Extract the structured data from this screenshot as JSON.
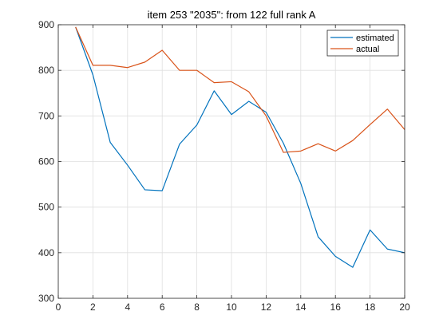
{
  "chart_data": {
    "type": "line",
    "title": "item 253 \"2035\": from 122 full rank A",
    "xlabel": "",
    "ylabel": "",
    "xlim": [
      0,
      20
    ],
    "ylim": [
      300,
      900
    ],
    "xticks": [
      0,
      2,
      4,
      6,
      8,
      10,
      12,
      14,
      16,
      18,
      20
    ],
    "yticks": [
      300,
      400,
      500,
      600,
      700,
      800,
      900
    ],
    "grid": true,
    "legend_position": "top-right",
    "x": [
      1,
      2,
      3,
      4,
      5,
      6,
      7,
      8,
      9,
      10,
      11,
      12,
      13,
      14,
      15,
      16,
      17,
      18,
      19,
      20
    ],
    "series": [
      {
        "name": "estimated",
        "color": "#0072BD",
        "values": [
          895,
          790,
          642,
          592,
          538,
          536,
          638,
          680,
          755,
          703,
          732,
          708,
          640,
          552,
          435,
          392,
          368,
          450,
          408,
          400
        ]
      },
      {
        "name": "actual",
        "color": "#D95319",
        "values": [
          895,
          811,
          811,
          806,
          818,
          844,
          800,
          800,
          773,
          775,
          753,
          700,
          620,
          623,
          639,
          623,
          646,
          681,
          715,
          670
        ]
      }
    ]
  }
}
